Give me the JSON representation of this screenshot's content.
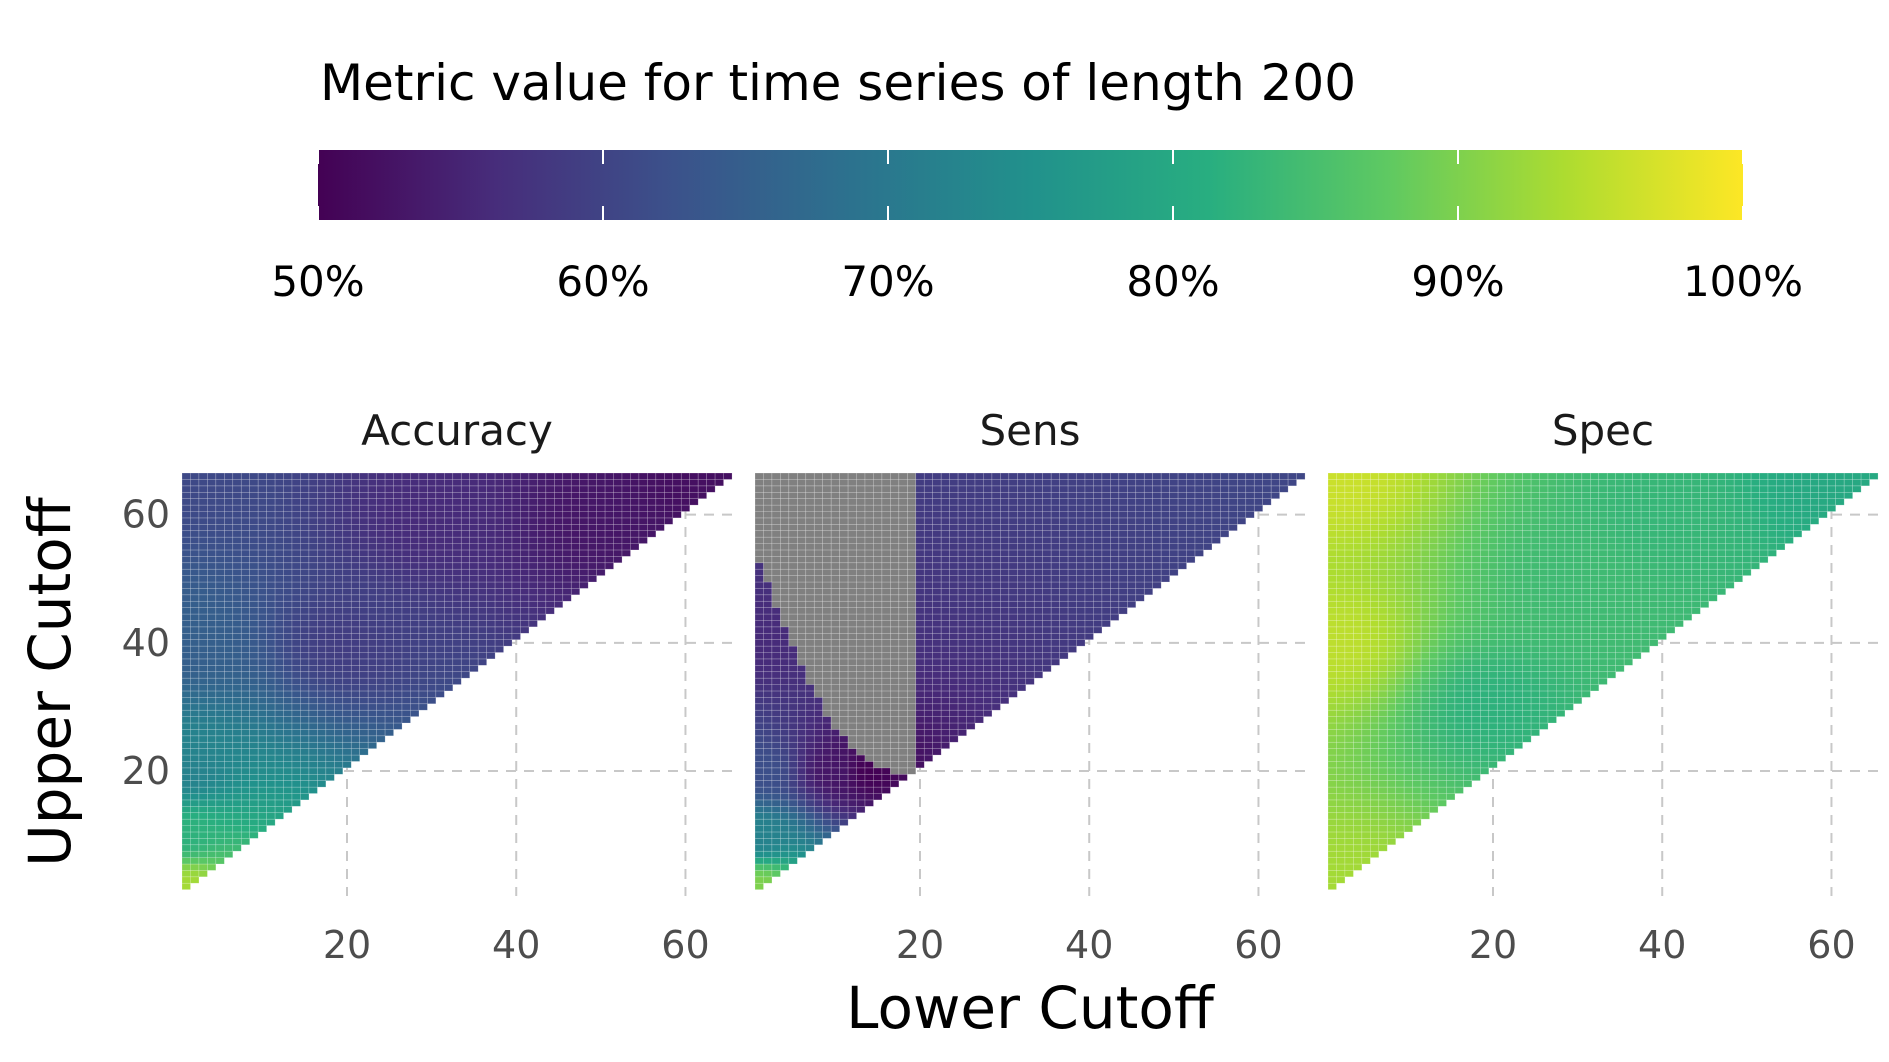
{
  "chart_data": {
    "type": "heatmap",
    "legend": {
      "title": "Metric value for time series of length 200",
      "position": "top",
      "range": [
        0.5,
        1.0
      ],
      "breaks": [
        0.5,
        0.6,
        0.7,
        0.8,
        0.9,
        1.0
      ],
      "labels": [
        "50%",
        "60%",
        "70%",
        "80%",
        "90%",
        "100%"
      ],
      "palette": [
        "#440154",
        "#472d7b",
        "#3b528b",
        "#2c728e",
        "#21918c",
        "#28ae80",
        "#5ec962",
        "#addc30",
        "#fde725"
      ]
    },
    "xlabel": "Lower Cutoff",
    "ylabel": "Upper Cutoff",
    "xlim": [
      1,
      65
    ],
    "ylim": [
      1,
      66
    ],
    "x_ticks": [
      20,
      40,
      60
    ],
    "y_ticks": [
      20,
      40,
      60
    ],
    "x_tick_labels": [
      "20",
      "40",
      "60"
    ],
    "y_tick_labels": [
      "20",
      "40",
      "60"
    ],
    "grid": "dashed major gridlines",
    "na_color": "#808080",
    "cell_condition": "upper cutoff > lower cutoff",
    "panels": [
      {
        "name": "Accuracy",
        "description_values": "value at (lower, upper)",
        "anchors": [
          {
            "lower": 1,
            "upper": 2,
            "value": 0.93
          },
          {
            "lower": 1,
            "upper": 10,
            "value": 0.82
          },
          {
            "lower": 1,
            "upper": 20,
            "value": 0.72
          },
          {
            "lower": 1,
            "upper": 40,
            "value": 0.65
          },
          {
            "lower": 1,
            "upper": 66,
            "value": 0.61
          },
          {
            "lower": 20,
            "upper": 40,
            "value": 0.59
          },
          {
            "lower": 30,
            "upper": 60,
            "value": 0.56
          },
          {
            "lower": 50,
            "upper": 60,
            "value": 0.53
          },
          {
            "lower": 60,
            "upper": 66,
            "value": 0.52
          }
        ]
      },
      {
        "name": "Sens",
        "description_values": "value at (lower, upper); NA region shown grey",
        "anchors": [
          {
            "lower": 1,
            "upper": 2,
            "value": 0.9
          },
          {
            "lower": 1,
            "upper": 10,
            "value": 0.72
          },
          {
            "lower": 1,
            "upper": 20,
            "value": 0.62
          },
          {
            "lower": 1,
            "upper": 40,
            "value": 0.56
          },
          {
            "lower": 10,
            "upper": 20,
            "value": 0.53
          },
          {
            "lower": 14,
            "upper": 20,
            "value": 0.5
          }
        ]
      },
      {
        "name": "Spec",
        "description_values": "value at (lower, upper)",
        "anchors": [
          {
            "lower": 1,
            "upper": 2,
            "value": 0.93
          },
          {
            "lower": 1,
            "upper": 40,
            "value": 0.95
          },
          {
            "lower": 1,
            "upper": 66,
            "value": 0.96
          },
          {
            "lower": 20,
            "upper": 30,
            "value": 0.82
          },
          {
            "lower": 30,
            "upper": 50,
            "value": 0.84
          },
          {
            "lower": 40,
            "upper": 60,
            "value": 0.83
          },
          {
            "lower": 60,
            "upper": 66,
            "value": 0.8
          }
        ]
      }
    ]
  }
}
